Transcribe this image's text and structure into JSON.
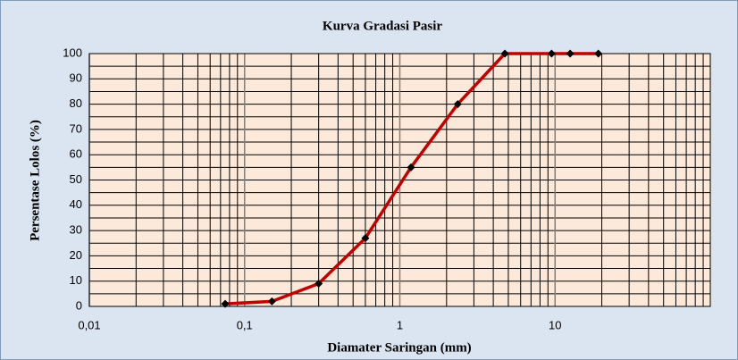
{
  "chart_data": {
    "type": "line",
    "title": "Kurva Gradasi Pasir",
    "x_label": "Diamater Saringan (mm)",
    "y_label": "Persentase Lolos (%)",
    "x": [
      0.075,
      0.15,
      0.3,
      0.6,
      1.18,
      2.36,
      4.75,
      9.5,
      12.5,
      19
    ],
    "series": [
      {
        "name": "Pasir",
        "color": "#c00000",
        "marker_color": "#000000",
        "values": [
          1,
          2,
          9,
          27,
          55,
          80,
          100,
          100,
          100,
          100
        ]
      }
    ],
    "xlim": [
      0.01,
      100
    ],
    "xscale": "log",
    "xticks": [
      {
        "value": 0.01,
        "label": "0,01"
      },
      {
        "value": 0.1,
        "label": "0,1"
      },
      1,
      10
    ],
    "ylim": [
      0,
      100
    ],
    "yticks": [
      0,
      10,
      20,
      30,
      40,
      50,
      60,
      70,
      80,
      90,
      100
    ],
    "grid": true,
    "legend": false
  }
}
